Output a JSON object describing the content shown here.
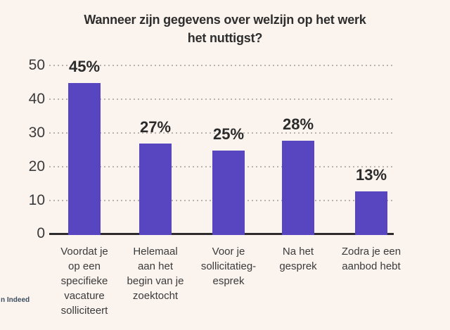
{
  "title_lines": [
    "Wanneer zijn gegevens over welzijn op het werk",
    "het nuttigst?"
  ],
  "source_text": "n Indeed",
  "colors": {
    "background": "#faf3ee",
    "bar": "#5746c0",
    "axis_line": "#2d2b2b",
    "grid_dots": "#b9b1ab",
    "title_text": "#2e2e2e",
    "label_text": "#3b3b3b",
    "source_text_color": "#3d4e61"
  },
  "chart_data": {
    "type": "bar",
    "title": "Wanneer zijn gegevens over welzijn op het werk het nuttigst?",
    "categories": [
      "Voordat je op een specifieke vacature solliciteert",
      "Helemaal aan het begin van je zoektocht",
      "Voor je sollicitatiegesprek",
      "Na het gesprek",
      "Zodra je een aanbod hebt"
    ],
    "category_lines": [
      [
        "Voordat je",
        "op een",
        "specifieke",
        "vacature",
        "solliciteert"
      ],
      [
        "Helemaal",
        "aan het",
        "begin van je",
        "zoektocht"
      ],
      [
        "Voor je",
        "sollicitatieg-",
        "esprek"
      ],
      [
        "Na het",
        "gesprek"
      ],
      [
        "Zodra je een",
        "aanbod hebt"
      ]
    ],
    "values": [
      45,
      27,
      25,
      28,
      13
    ],
    "value_labels": [
      "45%",
      "27%",
      "25%",
      "28%",
      "13%"
    ],
    "unit": "%",
    "xlabel": "",
    "ylabel": "",
    "ylim": [
      0,
      50
    ],
    "ytick_labels": [
      "50",
      "40",
      "30",
      "20",
      "10",
      "0"
    ],
    "grid": "horizontal-dotted",
    "legend": "none"
  }
}
